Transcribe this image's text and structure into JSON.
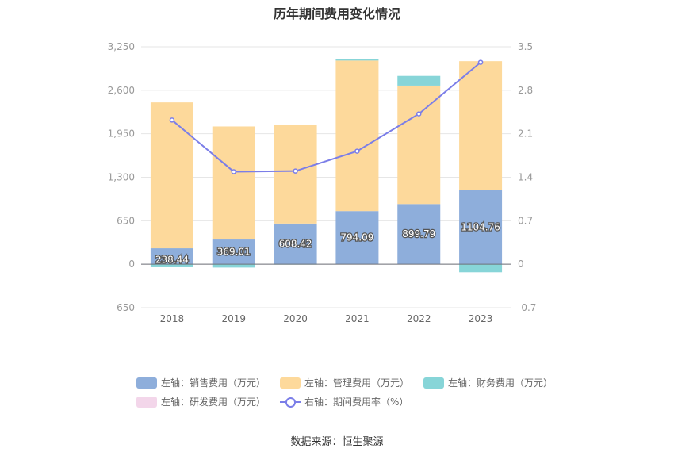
{
  "title": "历年期间费用变化情况",
  "source": "数据来源：恒生聚源",
  "colors": {
    "sales": "#8eaedb",
    "admin": "#fdd99b",
    "finance": "#87d5d8",
    "rnd": "#f3d6ea",
    "rate_line": "#7b7ee8",
    "grid": "#e6e6e6",
    "axis_text": "#999999"
  },
  "legend": {
    "sales": "左轴：销售费用（万元）",
    "admin": "左轴：管理费用（万元）",
    "finance": "左轴：财务费用（万元）",
    "rnd": "左轴：研发费用（万元）",
    "rate": "右轴：期间费用率（%）"
  },
  "chart_data": {
    "type": "bar",
    "title": "历年期间费用变化情况",
    "categories": [
      "2018",
      "2019",
      "2020",
      "2021",
      "2022",
      "2023"
    ],
    "left_axis": {
      "ylim": [
        -650,
        3250
      ],
      "ticks": [
        "-650",
        "0",
        "650",
        "1,300",
        "1,950",
        "2,600",
        "3,250"
      ],
      "tick_values": [
        -650,
        0,
        650,
        1300,
        1950,
        2600,
        3250
      ]
    },
    "right_axis": {
      "ylim": [
        -0.7,
        3.5
      ],
      "ticks": [
        "-0.7",
        "0",
        "0.7",
        "1.4",
        "2.1",
        "2.8",
        "3.5"
      ],
      "tick_values": [
        -0.7,
        0,
        0.7,
        1.4,
        2.1,
        2.8,
        3.5
      ]
    },
    "series": [
      {
        "name": "左轴：销售费用（万元）",
        "axis": "left",
        "stack": true,
        "values": [
          238.44,
          369.01,
          608.42,
          794.09,
          899.79,
          1104.76
        ],
        "labels": [
          "238.44",
          "369.01",
          "608.42",
          "794.09",
          "899.79",
          "1104.76"
        ]
      },
      {
        "name": "左轴：管理费用（万元）",
        "axis": "left",
        "stack": true,
        "values": [
          2180,
          1690,
          1480,
          2250,
          1770,
          1930
        ]
      },
      {
        "name": "左轴：财务费用（万元）",
        "axis": "left",
        "stack": true,
        "values": [
          -45,
          -50,
          -5,
          25,
          145,
          -120
        ]
      },
      {
        "name": "左轴：研发费用（万元）",
        "axis": "left",
        "stack": true,
        "values": [
          0,
          0,
          0,
          0,
          0,
          0
        ]
      },
      {
        "name": "右轴：期间费用率（%）",
        "axis": "right",
        "type": "line",
        "values": [
          2.32,
          1.49,
          1.5,
          1.82,
          2.42,
          3.25
        ]
      }
    ],
    "grid": true,
    "legend_position": "bottom"
  }
}
